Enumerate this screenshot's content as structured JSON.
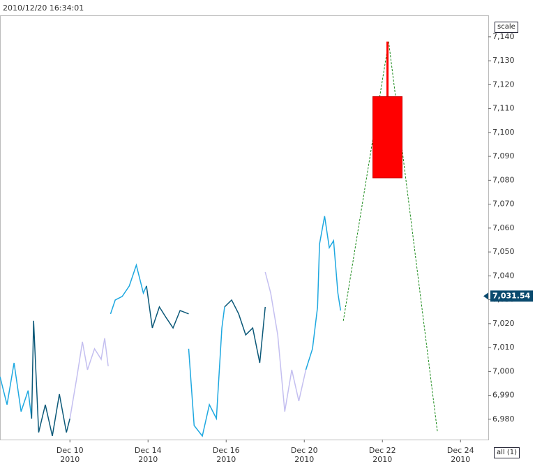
{
  "chart_data": {
    "type": "line",
    "timestamp": "2010/12/20 16:34:01",
    "scale_button": "scale",
    "range_button": "all (1)",
    "xlim": [
      -1.79,
      10.71
    ],
    "xticks": [
      {
        "value": 0,
        "label": "Dec 10\n2010"
      },
      {
        "value": 2,
        "label": "Dec 14\n2010"
      },
      {
        "value": 4,
        "label": "Dec 16\n2010"
      },
      {
        "value": 6,
        "label": "Dec 20\n2010"
      },
      {
        "value": 8,
        "label": "Dec 22\n2010"
      },
      {
        "value": 10,
        "label": "Dec 24\n2010"
      }
    ],
    "ylim": [
      6971.5,
      7149
    ],
    "yticks": [
      {
        "value": 6980,
        "label": "6,980"
      },
      {
        "value": 6990,
        "label": "6,990"
      },
      {
        "value": 7000,
        "label": "7,000"
      },
      {
        "value": 7010,
        "label": "7,010"
      },
      {
        "value": 7020,
        "label": "7,020"
      },
      {
        "value": 7030,
        "label": "7,030"
      },
      {
        "value": 7040,
        "label": "7,040"
      },
      {
        "value": 7050,
        "label": "7,050"
      },
      {
        "value": 7060,
        "label": "7,060"
      },
      {
        "value": 7070,
        "label": "7,070"
      },
      {
        "value": 7080,
        "label": "7,080"
      },
      {
        "value": 7090,
        "label": "7,090"
      },
      {
        "value": 7100,
        "label": "7,100"
      },
      {
        "value": 7110,
        "label": "7,110"
      },
      {
        "value": 7120,
        "label": "7,120"
      },
      {
        "value": 7130,
        "label": "7,130"
      },
      {
        "value": 7140,
        "label": "7,140"
      }
    ],
    "last_price": {
      "value": 7031.54,
      "label": "7,031.54"
    },
    "series": [
      {
        "color": "#1ea8e0",
        "x": [
          -1.79,
          -1.61,
          -1.43,
          -1.25,
          -1.07,
          -0.98
        ],
        "values": [
          6997.8,
          6986.1,
          7003.6,
          6983.2,
          6992.0,
          6980.3
        ]
      },
      {
        "color": "#0b5878",
        "x": [
          -0.98,
          -0.93,
          -0.8,
          -0.63,
          -0.45,
          -0.27,
          -0.09,
          0
        ],
        "values": [
          6980.3,
          7021.2,
          6974.5,
          6986.1,
          6973.0,
          6990.5,
          6974.5,
          6980.3
        ]
      },
      {
        "color": "#c4bff0",
        "x": [
          0,
          0.18,
          0.32,
          0.45,
          0.63,
          0.8,
          0.89,
          0.98
        ],
        "values": [
          6980.3,
          6997.8,
          7012.4,
          7000.7,
          7009.5,
          7005.1,
          7013.9,
          7002.2
        ]
      },
      {
        "color": "#1ea8e0",
        "x": [
          1.04,
          1.16,
          1.34,
          1.52,
          1.7,
          1.88,
          1.96
        ],
        "values": [
          7024.1,
          7029.9,
          7031.4,
          7035.8,
          7044.5,
          7032.8,
          7035.8
        ]
      },
      {
        "color": "#0b5878",
        "x": [
          1.96,
          2.11,
          2.29,
          2.46,
          2.64,
          2.82,
          3.04
        ],
        "values": [
          7035.8,
          7018.2,
          7027.0,
          7022.6,
          7018.2,
          7025.5,
          7024.1
        ]
      },
      {
        "color": "#1ea8e0",
        "x": [
          3.04,
          3.18,
          3.39,
          3.57,
          3.75,
          3.89,
          3.96
        ],
        "values": [
          7009.5,
          6977.4,
          6973.0,
          6986.1,
          6980.3,
          7018.2,
          7027.0
        ]
      },
      {
        "color": "#0b5878",
        "x": [
          3.96,
          4.14,
          4.32,
          4.5,
          4.68,
          4.86,
          5.0
        ],
        "values": [
          7027.0,
          7029.9,
          7024.1,
          7015.3,
          7018.2,
          7003.6,
          7027.0
        ]
      },
      {
        "color": "#c4bff0",
        "x": [
          5.0,
          5.14,
          5.32,
          5.5,
          5.68,
          5.86,
          6.04
        ],
        "values": [
          7041.6,
          7032.8,
          7015.3,
          6983.2,
          7000.7,
          6987.6,
          7000.7
        ]
      },
      {
        "color": "#1ea8e0",
        "x": [
          6.04,
          6.21,
          6.34,
          6.39,
          6.52,
          6.64,
          6.75,
          6.86,
          6.93
        ],
        "values": [
          7000.7,
          7009.5,
          7027.0,
          7053.3,
          7065.0,
          7051.8,
          7054.7,
          7032.8,
          7025.5
        ]
      }
    ],
    "forecast": {
      "color": "#1a8a1a",
      "x": [
        7.0,
        8.16,
        9.41
      ],
      "values": [
        7021.2,
        7138.0,
        6974.5
      ]
    },
    "candle": {
      "color": "#ff0000",
      "x": 8.13,
      "width": 0.75,
      "open": 7115,
      "close": 7081,
      "high": 7138,
      "low": 7081
    }
  }
}
